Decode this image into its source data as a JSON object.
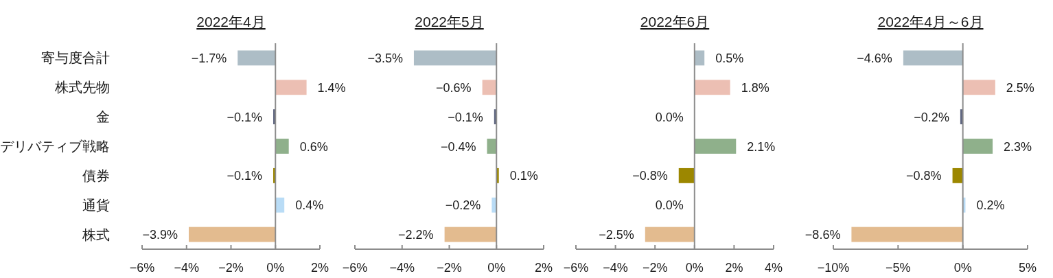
{
  "chart_data": [
    {
      "type": "bar",
      "orientation": "horizontal",
      "title": "2022年4月",
      "categories": [
        "寄与度合計",
        "株式先物",
        "金",
        "デリバティブ戦略",
        "債券",
        "通貨",
        "株式"
      ],
      "values": [
        -1.7,
        1.4,
        -0.1,
        0.6,
        -0.1,
        0.4,
        -3.9
      ],
      "colors": [
        "#adbdc6",
        "#ecbfb3",
        "#5f6680",
        "#8fb08b",
        "#9c8700",
        "#b9dcf6",
        "#e3bb8f"
      ],
      "value_labels": [
        "−1.7%",
        "1.4%",
        "−0.1%",
        "0.6%",
        "−0.1%",
        "0.4%",
        "−3.9%"
      ],
      "xlim": [
        -6,
        2
      ],
      "xticks": [
        {
          "value": -6,
          "label": "−6%"
        },
        {
          "value": -4,
          "label": "−4%"
        },
        {
          "value": -2,
          "label": "−2%"
        },
        {
          "value": 0,
          "label": "0%"
        },
        {
          "value": 2,
          "label": "2%"
        }
      ]
    },
    {
      "type": "bar",
      "orientation": "horizontal",
      "title": "2022年5月",
      "categories": [
        null,
        null,
        null,
        null,
        null,
        null,
        null
      ],
      "values": [
        -3.5,
        -0.6,
        -0.1,
        -0.4,
        0.1,
        -0.2,
        -2.2
      ],
      "colors": [
        "#adbdc6",
        "#ecbfb3",
        "#5f6680",
        "#8fb08b",
        "#9c8700",
        "#b9dcf6",
        "#e3bb8f"
      ],
      "value_labels": [
        "−3.5%",
        "−0.6%",
        "−0.1%",
        "−0.4%",
        "0.1%",
        "−0.2%",
        "−2.2%"
      ],
      "xlim": [
        -6,
        2
      ],
      "xticks": [
        {
          "value": -6,
          "label": "−6%"
        },
        {
          "value": -4,
          "label": "−4%"
        },
        {
          "value": -2,
          "label": "−2%"
        },
        {
          "value": 0,
          "label": "0%"
        },
        {
          "value": 2,
          "label": "2%"
        }
      ],
      "tick_labels": "x"
    },
    {
      "type": "bar",
      "orientation": "horizontal",
      "title": "2022年6月",
      "categories": [
        null,
        null,
        null,
        null,
        null,
        null,
        null
      ],
      "values": [
        0.5,
        1.8,
        0.0,
        2.1,
        -0.8,
        0.0,
        -2.5
      ],
      "colors": [
        "#adbdc6",
        "#ecbfb3",
        "#5f6680",
        "#8fb08b",
        "#9c8700",
        "#b9dcf6",
        "#e3bb8f"
      ],
      "value_labels": [
        "0.5%",
        "1.8%",
        "0.0%",
        "2.1%",
        "−0.8%",
        "0.0%",
        "−2.5%"
      ],
      "xlim": [
        -6,
        4
      ],
      "xticks": [
        {
          "value": -6,
          "label": "−6%"
        },
        {
          "value": -4,
          "label": "−4%"
        },
        {
          "value": -2,
          "label": "−2%"
        },
        {
          "value": 0,
          "label": "0%"
        },
        {
          "value": 2,
          "label": "2%"
        },
        {
          "value": 4,
          "label": "4%"
        }
      ],
      "tick_labels": "x"
    },
    {
      "type": "bar",
      "orientation": "horizontal",
      "title": "2022年4月～6月",
      "categories": [
        null,
        null,
        null,
        null,
        null,
        null,
        null
      ],
      "values": [
        -4.6,
        2.5,
        -0.2,
        2.3,
        -0.8,
        0.2,
        -8.6
      ],
      "colors": [
        "#adbdc6",
        "#ecbfb3",
        "#5f6680",
        "#8fb08b",
        "#9c8700",
        "#b9dcf6",
        "#e3bb8f"
      ],
      "value_labels": [
        "−4.6%",
        "2.5%",
        "−0.2%",
        "2.3%",
        "−0.8%",
        "0.2%",
        "−8.6%"
      ],
      "xlim": [
        -10,
        5
      ],
      "xticks": [
        {
          "value": -10,
          "label": "−10%"
        },
        {
          "value": -5,
          "label": "−5%"
        },
        {
          "value": 0,
          "label": "0%"
        },
        {
          "value": 5,
          "label": "5%"
        }
      ],
      "tick_labels": "x"
    }
  ]
}
